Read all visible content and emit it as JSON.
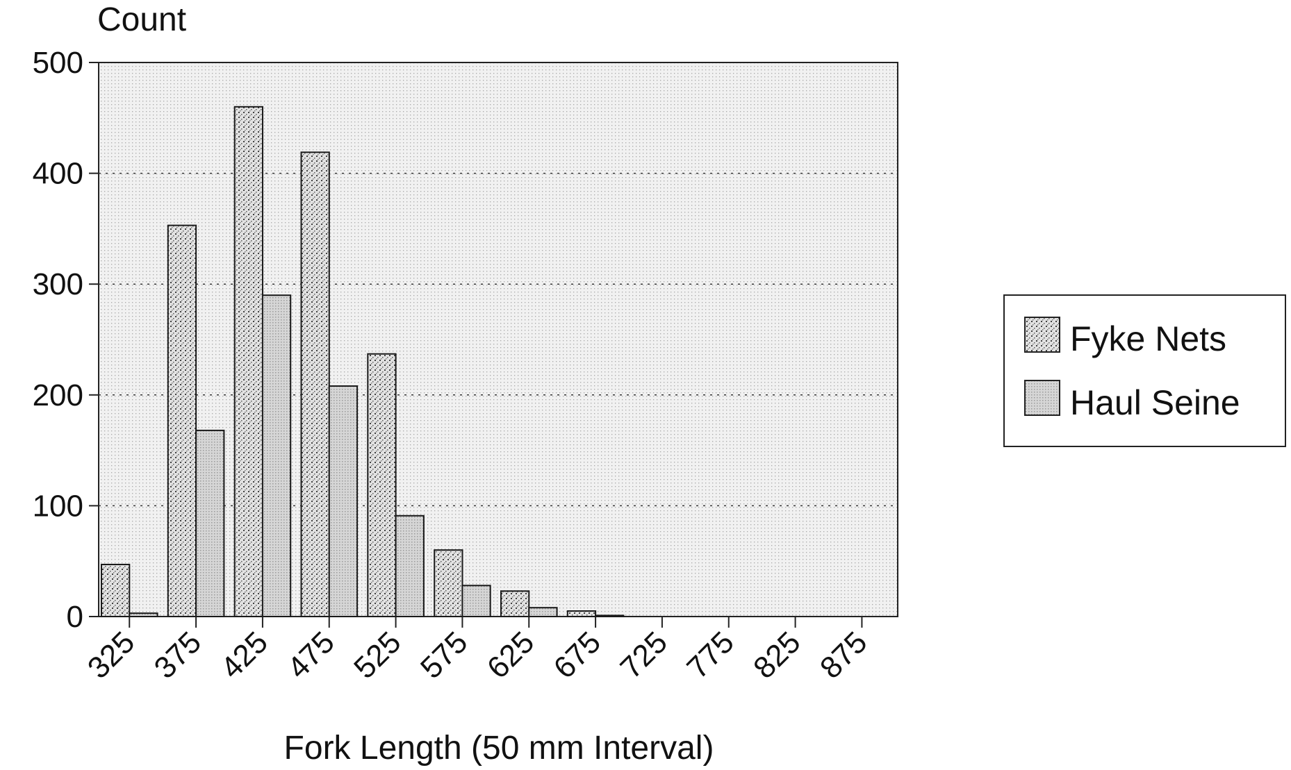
{
  "chart_data": {
    "type": "bar",
    "title": "",
    "ylabel": "Count",
    "xlabel": "Fork Length (50 mm Interval)",
    "categories": [
      "325",
      "375",
      "425",
      "475",
      "525",
      "575",
      "625",
      "675",
      "725",
      "775",
      "825",
      "875"
    ],
    "series": [
      {
        "name": "Fyke Nets",
        "values": [
          47,
          353,
          460,
          419,
          237,
          60,
          23,
          5,
          0,
          0,
          0,
          0
        ],
        "color": "#9a9a9a"
      },
      {
        "name": "Haul Seine",
        "values": [
          3,
          168,
          290,
          208,
          91,
          28,
          8,
          1,
          0,
          0,
          0,
          0
        ],
        "color": "#c4c4c4"
      }
    ],
    "ylim": [
      0,
      500
    ],
    "yticks": [
      0,
      100,
      200,
      300,
      400,
      500
    ],
    "grid": true,
    "legend_position": "right"
  }
}
